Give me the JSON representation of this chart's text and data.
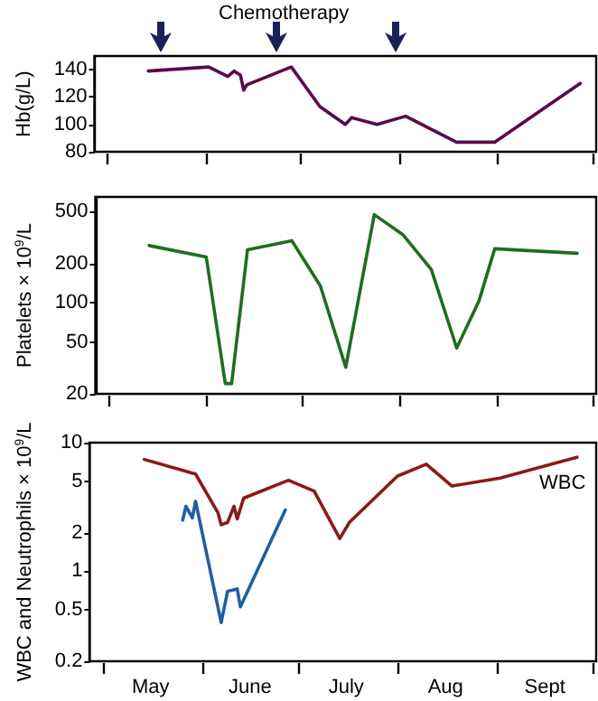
{
  "chart_data": [
    {
      "type": "line",
      "title": "Chemotherapy",
      "ylabel": "Hb(g/L)",
      "x": [
        "--05-14",
        "--06-02",
        "--06-08",
        "--06-10",
        "--06-12",
        "--06-13",
        "--06-14",
        "--06-28",
        "--07-07",
        "--07-15",
        "--07-17",
        "--07-25",
        "--08-03",
        "--08-19",
        "--08-31",
        "--09-27"
      ],
      "series": [
        {
          "color": "#5a0a4a",
          "values": [
            139,
            142,
            135,
            139,
            136,
            125,
            129,
            142,
            113,
            100,
            105,
            100,
            106,
            87,
            87,
            130
          ]
        }
      ],
      "xlim": [
        "--04-27",
        "--10-02"
      ],
      "xticks": [
        {
          "value": "--05-01",
          "label": null
        },
        {
          "value": "--06-01",
          "label": null
        },
        {
          "value": "--07-01",
          "label": null
        },
        {
          "value": "--08-01",
          "label": null
        },
        {
          "value": "--09-01",
          "label": null
        },
        {
          "value": "--10-01",
          "label": null
        }
      ],
      "ylim": [
        80,
        150
      ],
      "yticks": [
        80,
        100,
        120,
        140
      ],
      "tick_labels": "y",
      "grid": false,
      "legend": false,
      "marker": "none",
      "line_style": "solid"
    },
    {
      "type": "line",
      "ylabel": "Platelets × 10$^{9}$/L",
      "x": [
        "--05-14",
        "--06-01",
        "--06-07",
        "--06-09",
        "--06-14",
        "--06-28",
        "--07-07",
        "--07-15",
        "--07-24",
        "--08-02",
        "--08-11",
        "--08-19",
        "--08-26",
        "--08-31",
        "--09-26"
      ],
      "series": [
        {
          "color": "#1e6e1e",
          "values": [
            275,
            225,
            24,
            24,
            255,
            300,
            135,
            32,
            475,
            334,
            180,
            45,
            103,
            260,
            240
          ]
        }
      ],
      "xlim": [
        "--04-27",
        "--10-02"
      ],
      "xticks": [
        {
          "value": "--05-01",
          "label": null
        },
        {
          "value": "--06-01",
          "label": null
        },
        {
          "value": "--07-01",
          "label": null
        },
        {
          "value": "--08-01",
          "label": null
        },
        {
          "value": "--09-01",
          "label": null
        },
        {
          "value": "--10-01",
          "label": null
        }
      ],
      "ylim": [
        20,
        650
      ],
      "yticks": [
        20,
        50,
        100,
        200,
        500
      ],
      "log": "y",
      "tick_labels": "y",
      "grid": false,
      "legend": false,
      "marker": "none",
      "line_style": "solid"
    },
    {
      "type": "line",
      "ylabel": "WBC and Neutrophils × 10$^{9}$/L",
      "series": [
        {
          "name": "WBC",
          "color": "#8b1a1a",
          "x": [
            "--05-14",
            "--05-30",
            "--06-06",
            "--06-07",
            "--06-09",
            "--06-11",
            "--06-12",
            "--06-14",
            "--06-28",
            "--07-06",
            "--07-14",
            "--07-17",
            "--08-01",
            "--08-10",
            "--08-18",
            "--09-02",
            "--09-26"
          ],
          "values": [
            7.4,
            5.7,
            2.85,
            2.3,
            2.4,
            3.2,
            2.55,
            3.7,
            5.1,
            4.2,
            1.8,
            2.4,
            5.5,
            6.8,
            4.6,
            5.3,
            7.7
          ]
        },
        {
          "color": "#1f5fa0",
          "x": [
            "--05-26",
            "--05-27",
            "--05-29",
            "--05-30",
            "--06-07",
            "--06-09",
            "--06-12",
            "--06-13",
            "--06-27"
          ],
          "values": [
            2.5,
            3.2,
            2.6,
            3.5,
            0.4,
            0.7,
            0.73,
            0.53,
            3.0
          ]
        }
      ],
      "xlim": [
        "--04-27",
        "--10-02"
      ],
      "xticks": [
        {
          "value": "--05-01",
          "label": null
        },
        {
          "value": "--05-16",
          "label": "May"
        },
        {
          "value": "--06-01",
          "label": null
        },
        {
          "value": "--06-16",
          "label": "June"
        },
        {
          "value": "--07-01",
          "label": null
        },
        {
          "value": "--07-16",
          "label": "July"
        },
        {
          "value": "--08-01",
          "label": null
        },
        {
          "value": "--08-16",
          "label": "Aug"
        },
        {
          "value": "--09-01",
          "label": null
        },
        {
          "value": "--09-16",
          "label": "Sept"
        },
        {
          "value": "--10-01",
          "label": null
        }
      ],
      "ylim": [
        0.2,
        10
      ],
      "yticks": [
        0.2,
        0.5,
        1,
        2,
        5,
        10
      ],
      "log": "y",
      "grid": false,
      "legend": false,
      "marker": "none",
      "line_style": "solid"
    }
  ]
}
